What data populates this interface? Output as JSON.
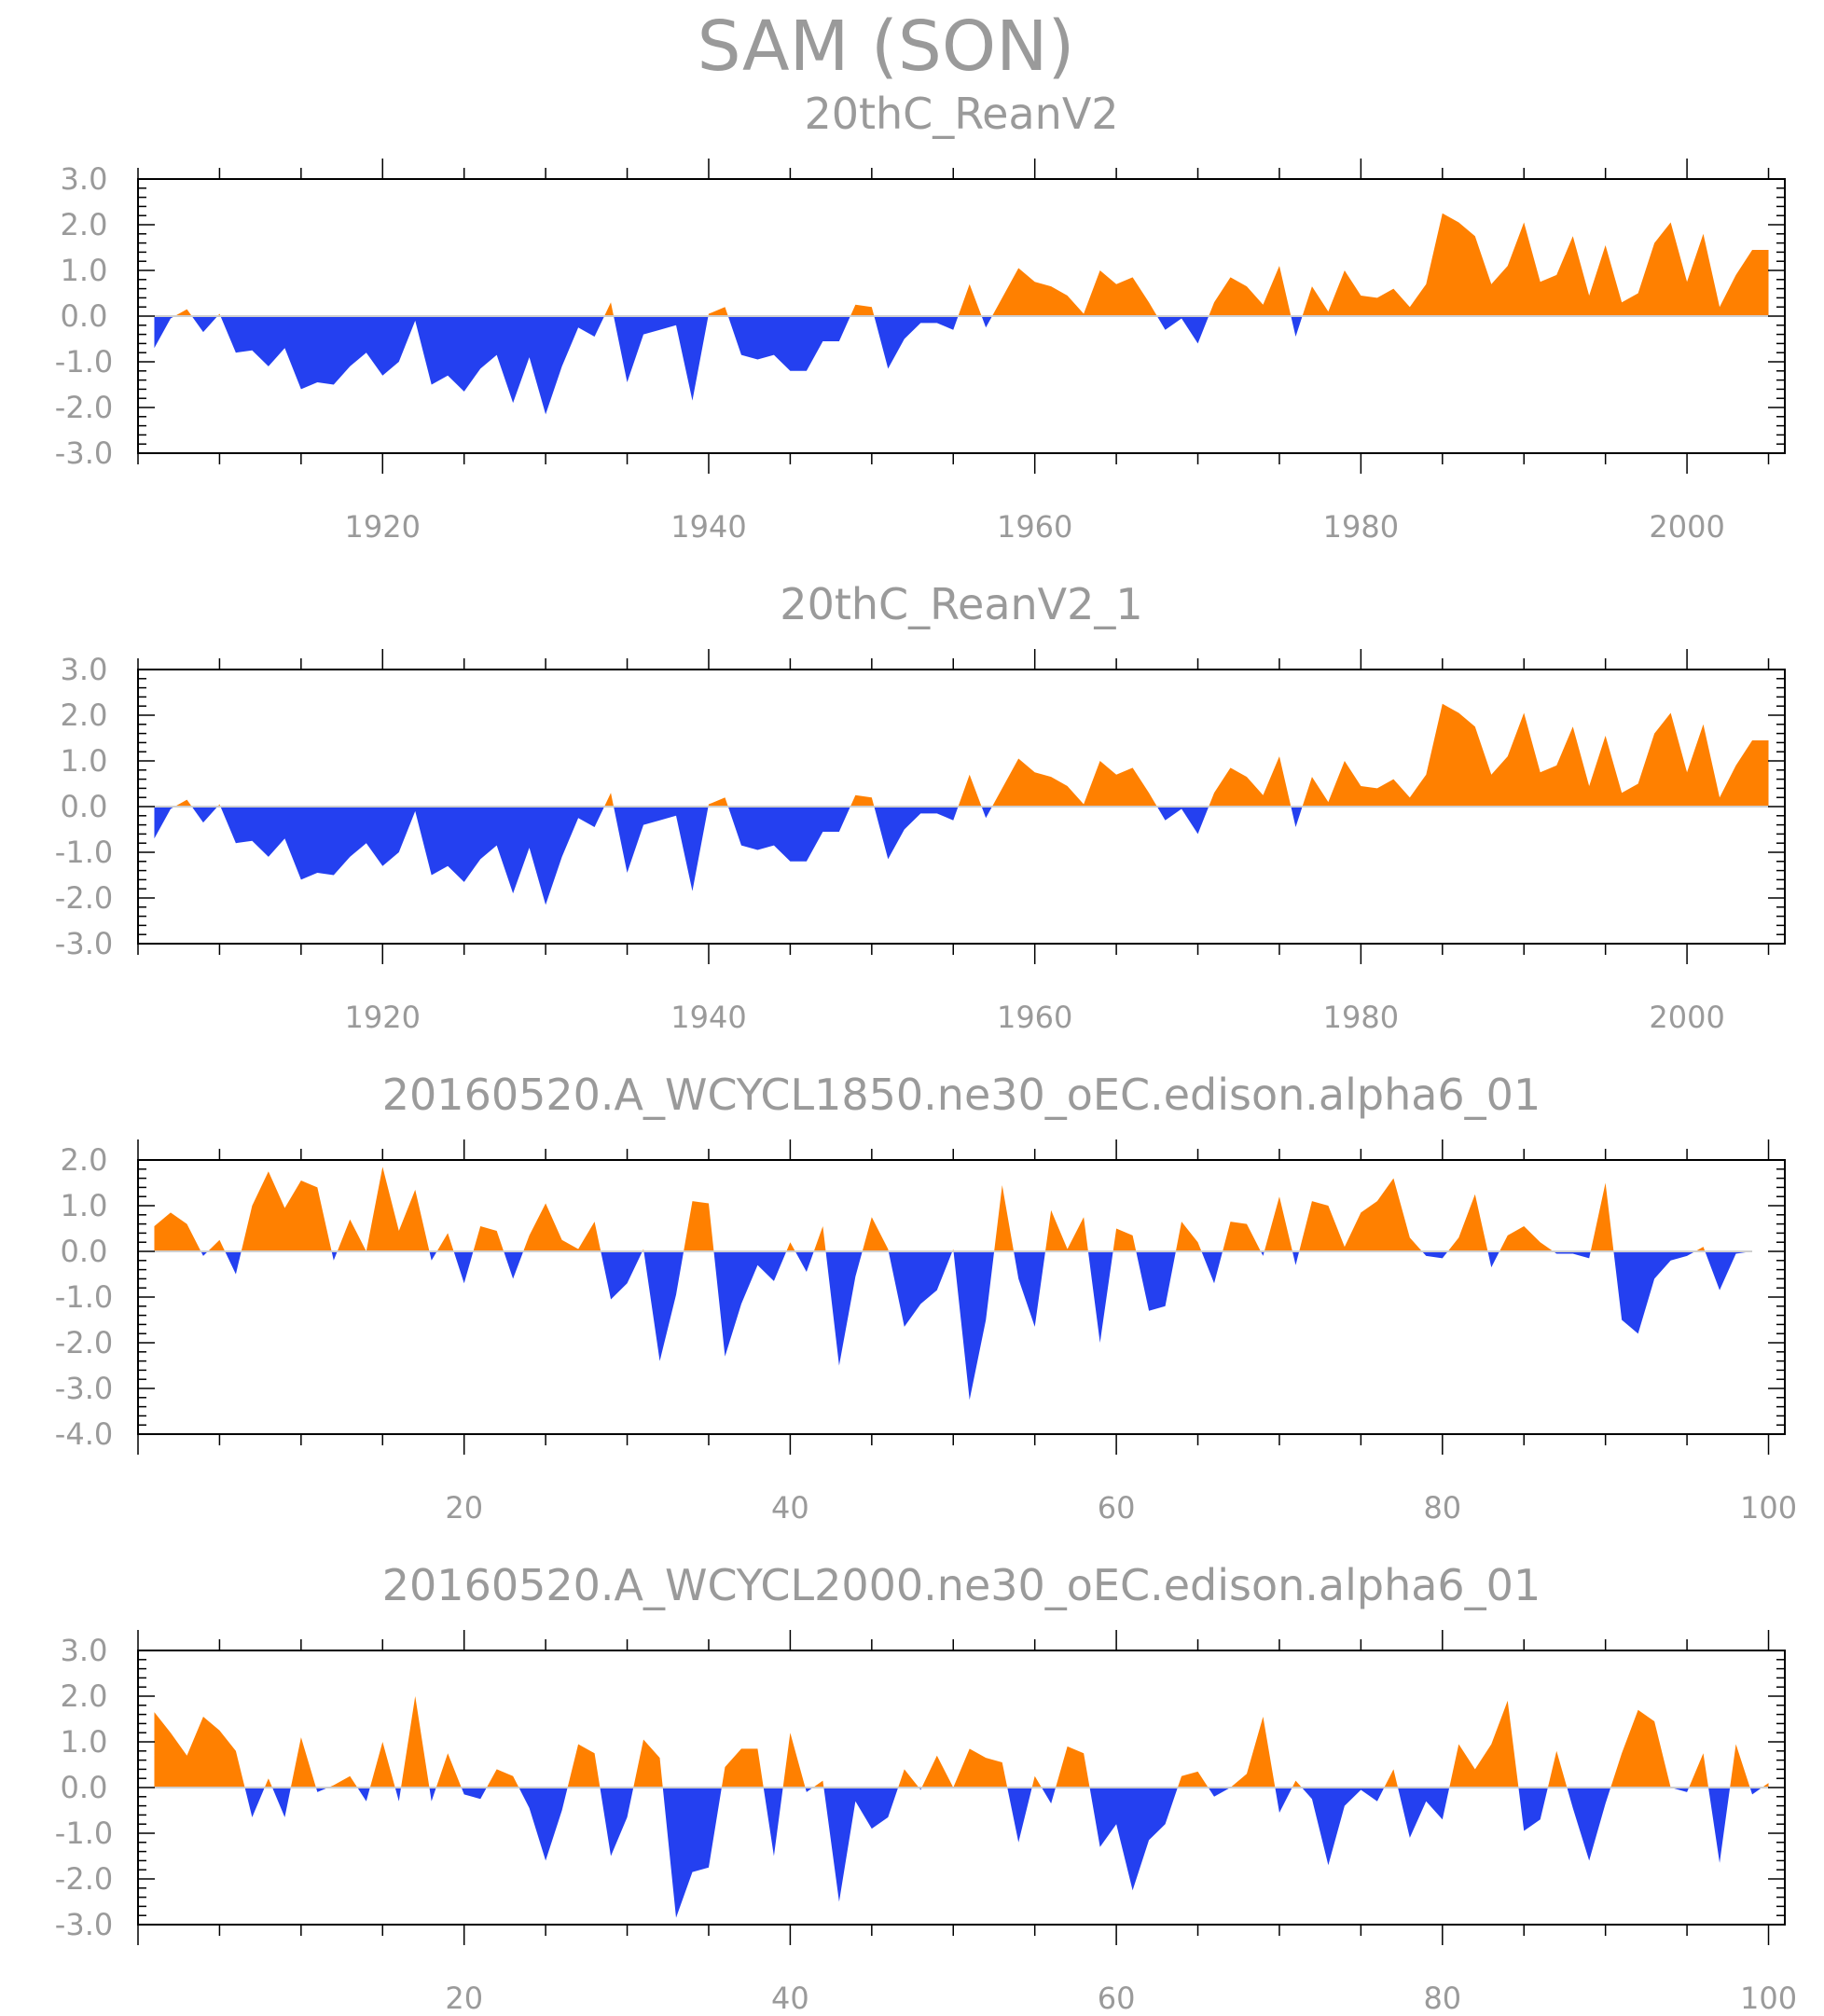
{
  "title": "SAM (SON)",
  "colors": {
    "positive": "#ff8000",
    "negative": "#2440f0",
    "text": "#9a9a9a",
    "frame": "#000000"
  },
  "chart_data": [
    {
      "type": "area",
      "title": "20thC_ReanV2",
      "ylim": [
        -3.0,
        3.0
      ],
      "yticks": [
        3.0,
        2.0,
        1.0,
        0.0,
        -1.0,
        -2.0,
        -3.0
      ],
      "ytick_labels": [
        "3.0",
        "2.0",
        "1.0",
        "0.0",
        "-1.0",
        "-2.0",
        "-3.0"
      ],
      "xlim": [
        1905,
        2006
      ],
      "xticks": [
        1920,
        1940,
        1960,
        1980,
        2000
      ],
      "xtick_labels": [
        "1920",
        "1940",
        "1960",
        "1980",
        "2000"
      ],
      "x_start": 1906,
      "values": [
        -0.7,
        -0.05,
        0.15,
        -0.35,
        0.05,
        -0.8,
        -0.75,
        -1.1,
        -0.7,
        -1.6,
        -1.45,
        -1.5,
        -1.1,
        -0.8,
        -1.3,
        -1.0,
        -0.1,
        -1.5,
        -1.3,
        -1.65,
        -1.15,
        -0.85,
        -1.9,
        -0.9,
        -2.15,
        -1.1,
        -0.25,
        -0.45,
        0.3,
        -1.45,
        -0.4,
        -0.3,
        -0.2,
        -1.85,
        0.05,
        0.2,
        -0.85,
        -0.95,
        -0.85,
        -1.2,
        -1.2,
        -0.55,
        -0.55,
        0.25,
        0.2,
        -1.15,
        -0.5,
        -0.15,
        -0.15,
        -0.3,
        0.7,
        -0.25,
        0.4,
        1.05,
        0.75,
        0.65,
        0.45,
        0.05,
        1.0,
        0.7,
        0.85,
        0.3,
        -0.3,
        -0.05,
        -0.6,
        0.3,
        0.85,
        0.65,
        0.25,
        1.1,
        -0.45,
        0.65,
        0.1,
        1.0,
        0.45,
        0.4,
        0.6,
        0.2,
        0.7,
        2.25,
        2.05,
        1.75,
        0.7,
        1.1,
        2.05,
        0.75,
        0.9,
        1.75,
        0.45,
        1.55,
        0.3,
        0.5,
        1.6,
        2.05,
        0.75,
        1.8,
        0.2,
        0.9,
        1.45,
        1.45
      ]
    },
    {
      "type": "area",
      "title": "20thC_ReanV2_1",
      "ylim": [
        -3.0,
        3.0
      ],
      "yticks": [
        3.0,
        2.0,
        1.0,
        0.0,
        -1.0,
        -2.0,
        -3.0
      ],
      "ytick_labels": [
        "3.0",
        "2.0",
        "1.0",
        "0.0",
        "-1.0",
        "-2.0",
        "-3.0"
      ],
      "xlim": [
        1905,
        2006
      ],
      "xticks": [
        1920,
        1940,
        1960,
        1980,
        2000
      ],
      "xtick_labels": [
        "1920",
        "1940",
        "1960",
        "1980",
        "2000"
      ],
      "x_start": 1906,
      "values": [
        -0.7,
        -0.05,
        0.15,
        -0.35,
        0.05,
        -0.8,
        -0.75,
        -1.1,
        -0.7,
        -1.6,
        -1.45,
        -1.5,
        -1.1,
        -0.8,
        -1.3,
        -1.0,
        -0.1,
        -1.5,
        -1.3,
        -1.65,
        -1.15,
        -0.85,
        -1.9,
        -0.9,
        -2.15,
        -1.1,
        -0.25,
        -0.45,
        0.3,
        -1.45,
        -0.4,
        -0.3,
        -0.2,
        -1.85,
        0.05,
        0.2,
        -0.85,
        -0.95,
        -0.85,
        -1.2,
        -1.2,
        -0.55,
        -0.55,
        0.25,
        0.2,
        -1.15,
        -0.5,
        -0.15,
        -0.15,
        -0.3,
        0.7,
        -0.25,
        0.4,
        1.05,
        0.75,
        0.65,
        0.45,
        0.05,
        1.0,
        0.7,
        0.85,
        0.3,
        -0.3,
        -0.05,
        -0.6,
        0.3,
        0.85,
        0.65,
        0.25,
        1.1,
        -0.45,
        0.65,
        0.1,
        1.0,
        0.45,
        0.4,
        0.6,
        0.2,
        0.7,
        2.25,
        2.05,
        1.75,
        0.7,
        1.1,
        2.05,
        0.75,
        0.9,
        1.75,
        0.45,
        1.55,
        0.3,
        0.5,
        1.6,
        2.05,
        0.75,
        1.8,
        0.2,
        0.9,
        1.45,
        1.45
      ]
    },
    {
      "type": "area",
      "title": "20160520.A_WCYCL1850.ne30_oEC.edison.alpha6_01",
      "ylim": [
        -4.0,
        2.0
      ],
      "yticks": [
        2.0,
        1.0,
        0.0,
        -1.0,
        -2.0,
        -3.0,
        -4.0
      ],
      "ytick_labels": [
        "2.0",
        "1.0",
        "0.0",
        "-1.0",
        "-2.0",
        "-3.0",
        "-4.0"
      ],
      "xlim": [
        0,
        101
      ],
      "xticks": [
        20,
        40,
        60,
        80,
        100
      ],
      "xtick_labels": [
        "20",
        "40",
        "60",
        "80",
        "100"
      ],
      "x_start": 1,
      "values": [
        0.55,
        0.85,
        0.6,
        -0.1,
        0.25,
        -0.5,
        1.0,
        1.75,
        0.95,
        1.55,
        1.4,
        -0.2,
        0.7,
        0.0,
        1.85,
        0.45,
        1.35,
        -0.2,
        0.4,
        -0.7,
        0.55,
        0.45,
        -0.6,
        0.35,
        1.05,
        0.25,
        0.05,
        0.65,
        -1.05,
        -0.7,
        0.05,
        -2.4,
        -0.95,
        1.1,
        1.05,
        -2.3,
        -1.15,
        -0.3,
        -0.65,
        0.2,
        -0.45,
        0.55,
        -2.5,
        -0.55,
        0.75,
        0.05,
        -1.65,
        -1.15,
        -0.85,
        0.05,
        -3.25,
        -1.5,
        1.45,
        -0.6,
        -1.65,
        0.9,
        0.05,
        0.75,
        -2.0,
        0.5,
        0.35,
        -1.3,
        -1.2,
        0.65,
        0.2,
        -0.7,
        0.65,
        0.6,
        -0.1,
        1.2,
        -0.3,
        1.1,
        1.0,
        0.1,
        0.85,
        1.1,
        1.6,
        0.3,
        -0.1,
        -0.15,
        0.3,
        1.25,
        -0.35,
        0.35,
        0.55,
        0.2,
        -0.05,
        -0.05,
        -0.15,
        1.5,
        -1.5,
        -1.8,
        -0.6,
        -0.2,
        -0.1,
        0.1,
        -0.85,
        -0.05,
        0.0
      ]
    },
    {
      "type": "area",
      "title": "20160520.A_WCYCL2000.ne30_oEC.edison.alpha6_01",
      "ylim": [
        -3.0,
        3.0
      ],
      "yticks": [
        3.0,
        2.0,
        1.0,
        0.0,
        -1.0,
        -2.0,
        -3.0
      ],
      "ytick_labels": [
        "3.0",
        "2.0",
        "1.0",
        "0.0",
        "-1.0",
        "-2.0",
        "-3.0"
      ],
      "xlim": [
        0,
        101
      ],
      "xticks": [
        20,
        40,
        60,
        80,
        100
      ],
      "xtick_labels": [
        "20",
        "40",
        "60",
        "80",
        "100"
      ],
      "x_start": 1,
      "values": [
        1.65,
        1.2,
        0.7,
        1.55,
        1.25,
        0.8,
        -0.65,
        0.2,
        -0.65,
        1.1,
        -0.1,
        0.05,
        0.25,
        -0.3,
        1.0,
        -0.3,
        2.0,
        -0.3,
        0.75,
        -0.15,
        -0.25,
        0.4,
        0.25,
        -0.45,
        -1.6,
        -0.5,
        0.95,
        0.75,
        -1.5,
        -0.65,
        1.05,
        0.65,
        -2.85,
        -1.85,
        -1.75,
        0.45,
        0.85,
        0.85,
        -1.5,
        1.2,
        -0.1,
        0.15,
        -2.5,
        -0.3,
        -0.9,
        -0.65,
        0.4,
        -0.05,
        0.7,
        0.0,
        0.85,
        0.65,
        0.55,
        -1.2,
        0.25,
        -0.35,
        0.9,
        0.75,
        -1.3,
        -0.8,
        -2.25,
        -1.15,
        -0.8,
        0.25,
        0.35,
        -0.2,
        0.0,
        0.3,
        1.55,
        -0.55,
        0.15,
        -0.25,
        -1.7,
        -0.4,
        -0.05,
        -0.3,
        0.4,
        -1.1,
        -0.3,
        -0.7,
        0.95,
        0.4,
        0.95,
        1.9,
        -0.95,
        -0.7,
        0.8,
        -0.45,
        -1.6,
        -0.35,
        0.75,
        1.7,
        1.45,
        0.0,
        -0.1,
        0.75,
        -1.65,
        0.95,
        -0.15,
        0.1
      ]
    }
  ]
}
